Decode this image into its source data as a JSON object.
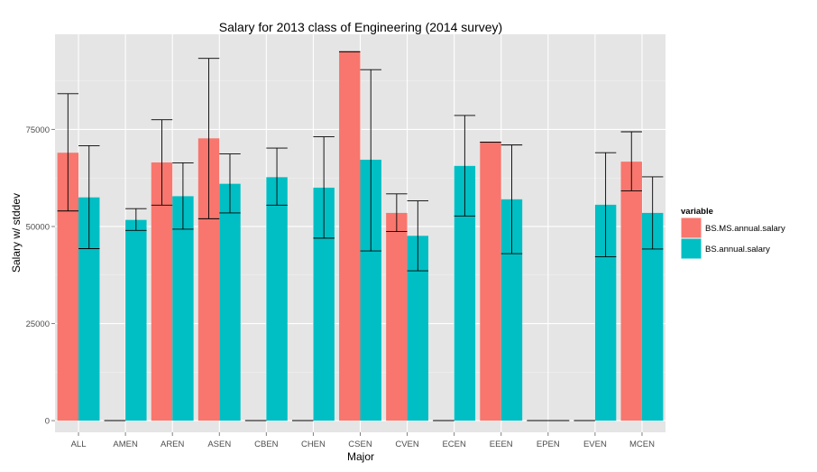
{
  "chart_data": {
    "type": "bar",
    "title": "Salary for 2013 class of Engineering (2014 survey)",
    "xlabel": "Major",
    "ylabel": "Salary w/ stddev",
    "ylim": [
      -3000,
      99500
    ],
    "yticks": [
      0,
      25000,
      50000,
      75000
    ],
    "categories": [
      "ALL",
      "AMEN",
      "AREN",
      "ASEN",
      "CBEN",
      "CHEN",
      "CSEN",
      "CVEN",
      "ECEN",
      "EEEN",
      "EPEN",
      "EVEN",
      "MCEN"
    ],
    "grid": true,
    "legend_position": "right",
    "legend_title": "variable",
    "series": [
      {
        "name": "BS.MS.annual.salary",
        "color": "#F8766D",
        "values": [
          69000,
          0,
          66500,
          72700,
          0,
          0,
          95000,
          53500,
          0,
          71700,
          0,
          0,
          66700
        ],
        "error_low": [
          54000,
          0,
          55500,
          52000,
          0,
          0,
          95000,
          48700,
          0,
          71700,
          0,
          0,
          59200
        ],
        "error_high": [
          84200,
          0,
          77500,
          93300,
          0,
          0,
          95000,
          58400,
          0,
          71700,
          0,
          0,
          74400
        ]
      },
      {
        "name": "BS.annual.salary",
        "color": "#00BFC4",
        "values": [
          57500,
          51700,
          57800,
          61000,
          62700,
          60000,
          67200,
          47600,
          65600,
          57000,
          0,
          55600,
          53500
        ],
        "error_low": [
          44300,
          49000,
          49300,
          53500,
          55500,
          47000,
          43700,
          38600,
          52700,
          43000,
          0,
          42200,
          44200
        ],
        "error_high": [
          70800,
          54600,
          66400,
          68700,
          70200,
          73100,
          90400,
          56600,
          78600,
          71000,
          0,
          69000,
          62800
        ]
      }
    ]
  }
}
